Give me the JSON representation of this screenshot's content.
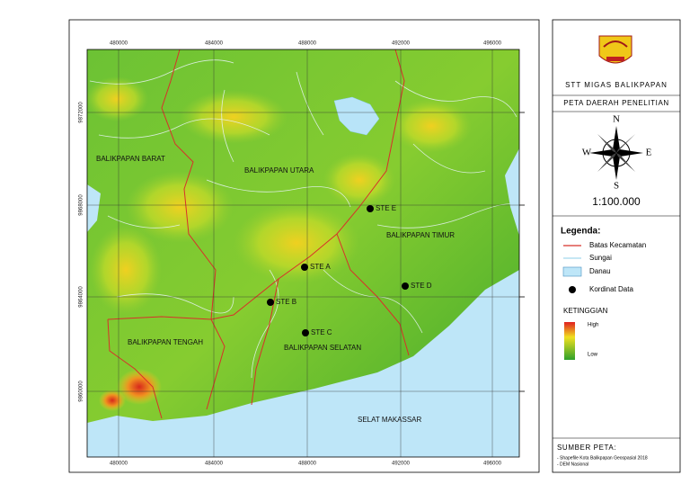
{
  "map": {
    "grid_x_labels": [
      "480000",
      "484000",
      "488000",
      "492000",
      "496000"
    ],
    "grid_y_labels": [
      "9872000",
      "9868000",
      "9864000",
      "9860000"
    ],
    "areas": [
      "BALIKPAPAN BARAT",
      "BALIKPAPAN UTARA",
      "BALIKPAPAN TIMUR",
      "BALIKPAPAN TENGAH",
      "BALIKPAPAN SELATAN"
    ],
    "sites": [
      "STE E",
      "STE A",
      "STE D",
      "STE B",
      "STE C"
    ],
    "sea_label": "SELAT MAKASSAR"
  },
  "panel": {
    "institution": "STT MIGAS BALIKPAPAN",
    "map_title": "PETA DAERAH PENELITIAN",
    "compass": {
      "n": "N",
      "s": "S",
      "e": "E",
      "w": "W"
    },
    "scale": "1:100.000",
    "legend": {
      "title": "Legenda:",
      "items": [
        "Batas Kecamatan",
        "Sungai",
        "Danau",
        "Kordinat Data"
      ]
    },
    "elevation": {
      "title": "KETINGGIAN",
      "high": "High",
      "low": "Low"
    },
    "source": {
      "title": "SUMBER PETA:",
      "items": [
        "- Shapefile Kota Balikpapan Geospasial 2018",
        "- DEM Nasional"
      ]
    }
  }
}
